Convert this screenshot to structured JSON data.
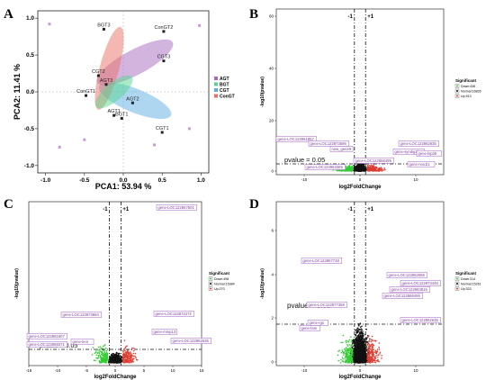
{
  "panels": {
    "A": {
      "label": "A",
      "xlabel": "PCA1: 53.94 %",
      "ylabel": "PCA2: 11.41 %",
      "xticks": [
        "-1.0",
        "-0.5",
        "0.0",
        "0.5",
        "1.0"
      ],
      "yticks": [
        "1.0",
        "0.5",
        "0.0",
        "-0.5",
        "-1.0"
      ],
      "legend": [
        "AGT",
        "BGT",
        "CGT",
        "ConGT"
      ],
      "colors": {
        "AGT": "#a569bd",
        "BGT": "#58d68d",
        "CGT": "#5dade2",
        "ConGT": "#ec7063"
      },
      "points": [
        {
          "label": "BGT3",
          "x": -0.25,
          "y": 0.85
        },
        {
          "label": "ConGT2",
          "x": 0.52,
          "y": 0.82
        },
        {
          "label": "CGT3",
          "x": 0.52,
          "y": 0.42
        },
        {
          "label": "CGT2",
          "x": -0.32,
          "y": 0.22
        },
        {
          "label": "AGT3",
          "x": -0.22,
          "y": 0.1
        },
        {
          "label": "ConGT1",
          "x": -0.48,
          "y": -0.05
        },
        {
          "label": "AGT1",
          "x": -0.12,
          "y": -0.32
        },
        {
          "label": "BGT1",
          "x": -0.02,
          "y": -0.36
        },
        {
          "label": "AGT2",
          "x": 0.12,
          "y": -0.15
        },
        {
          "label": "CGT1",
          "x": 0.5,
          "y": -0.55
        }
      ]
    },
    "B": {
      "label": "B",
      "xlabel": "log2FoldChange",
      "ylabel": "-log10(pvalue)",
      "xticks": [
        "-10",
        "0",
        "10"
      ],
      "yticks": [
        "0",
        "20",
        "40",
        "60"
      ],
      "vlines": [
        "-1",
        "+1"
      ],
      "pvalue_label": "pvalue = 0.05",
      "legend_title": "Significant",
      "legend": [
        "Down:436",
        "Normal:16835",
        "Up:913"
      ],
      "genes": [
        "gene-LOC122861857",
        "gene-LOC122873596",
        "new_gene9",
        "gene-LOC122863365",
        "gene-LOC122866499",
        "gene-syndig1l",
        "gene-LOC122862635",
        "gene-lsp2b",
        "gene-nos1l1"
      ]
    },
    "C": {
      "label": "C",
      "xlabel": "log2FoldChange",
      "ylabel": "-log10(pvalue)",
      "xticks": [
        "-15",
        "-10",
        "-5",
        "0",
        "5",
        "10",
        "15"
      ],
      "vlines": [
        "-1",
        "+1"
      ],
      "pvalue_label": "pvalue = 0.05",
      "legend_title": "Significant",
      "legend": [
        "Down:498",
        "Normal:15384",
        "Up:270"
      ],
      "genes": [
        "gene-LOC122867501",
        "gene-LOC122873684",
        "gene-LOC122872272",
        "gene-LOC122861607",
        "gene-LOC122868371",
        "gene-leor",
        "gene-mmp13",
        "gene-LOC122862635"
      ]
    },
    "D": {
      "label": "D",
      "xlabel": "log2FoldChange",
      "ylabel": "-log10(pvalue)",
      "xticks": [
        "-10",
        "0",
        "10"
      ],
      "yticks": [
        "0",
        "2",
        "4",
        "6"
      ],
      "vlines": [
        "-1",
        "+1"
      ],
      "pvalue_label": "pvalue = 0.05",
      "legend_title": "Significant",
      "legend": [
        "Down:314",
        "Normal:15261",
        "Up:323"
      ],
      "genes": [
        "gene-LOC122867748",
        "gene-LOC122862656",
        "gene-LOC122873446",
        "gene-LOC122863815",
        "gene-LOC122866495",
        "gene-LOC122877358",
        "gene-rgs",
        "gene-LOC122862635",
        "gene-fam"
      ]
    }
  },
  "chart_data": [
    {
      "type": "scatter",
      "title": "",
      "xlabel": "PCA1: 53.94 %",
      "ylabel": "PCA2: 11.41 %",
      "xlim": [
        -1.1,
        1.1
      ],
      "ylim": [
        -1.1,
        1.1
      ],
      "series": [
        {
          "name": "AGT",
          "x": [
            -0.22,
            -0.12,
            0.12
          ],
          "y": [
            0.1,
            -0.32,
            -0.15
          ]
        },
        {
          "name": "BGT",
          "x": [
            -0.25,
            -0.02
          ],
          "y": [
            0.85,
            -0.36
          ]
        },
        {
          "name": "CGT",
          "x": [
            0.5,
            -0.32,
            0.52
          ],
          "y": [
            -0.55,
            0.22,
            0.42
          ]
        },
        {
          "name": "ConGT",
          "x": [
            -0.48,
            0.52
          ],
          "y": [
            -0.05,
            0.82
          ]
        }
      ],
      "legend_position": "right"
    },
    {
      "type": "scatter",
      "xlabel": "log2FoldChange",
      "ylabel": "-log10(pvalue)",
      "xlim": [
        -15,
        15
      ],
      "ylim": [
        0,
        65
      ],
      "legend": [
        "Down:436",
        "Normal:16835",
        "Up:913"
      ],
      "legend_position": "right"
    },
    {
      "type": "scatter",
      "xlabel": "log2FoldChange",
      "ylabel": "-log10(pvalue)",
      "xlim": [
        -15,
        15
      ],
      "legend": [
        "Down:498",
        "Normal:15384",
        "Up:270"
      ],
      "legend_position": "right"
    },
    {
      "type": "scatter",
      "xlabel": "log2FoldChange",
      "ylabel": "-log10(pvalue)",
      "xlim": [
        -15,
        15
      ],
      "ylim": [
        0,
        7
      ],
      "legend": [
        "Down:314",
        "Normal:15261",
        "Up:323"
      ],
      "legend_position": "right"
    }
  ]
}
